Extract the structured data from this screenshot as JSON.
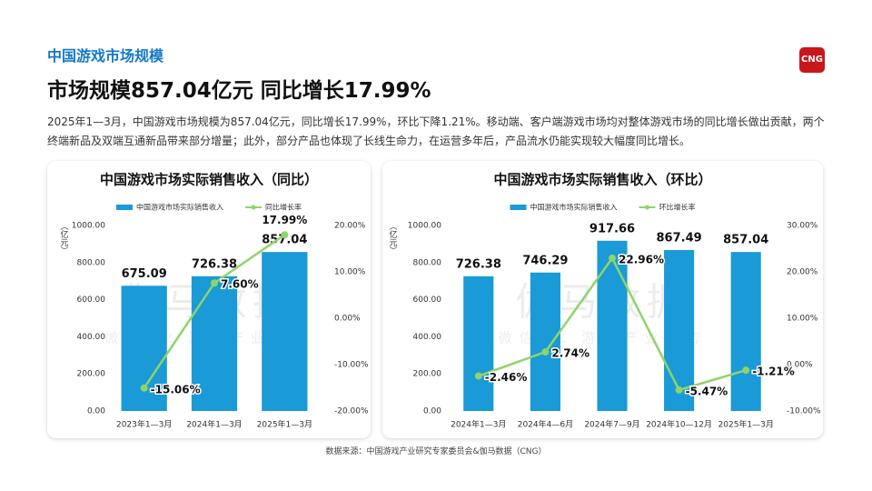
{
  "section": "中国游戏市场规模",
  "title": "市场规模857.04亿元 同比增长17.99%",
  "paragraph": "2025年1—3月，中国游戏市场规模为857.04亿元，同比增长17.99%，环比下降1.21%。移动端、客户端游戏市场均对整体游戏市场的同比增长做出贡献，两个终端新品及双端互通新品带来部分增量；此外，部分产品也体现了长线生命力，在运营多年后，产品流水仍能实现较大幅度同比增长。",
  "logo": "CNG",
  "watermark": [
    "伽马数据",
    "微信号：游戏产业报告"
  ],
  "source": "数据来源：中国游戏产业研究专家委员会&伽马数据（CNG）",
  "chart_data": [
    {
      "type": "bar_line",
      "title": "中国游戏市场实际销售收入（同比）",
      "y_label": "（亿元）",
      "categories": [
        "2023年1—3月",
        "2024年1—3月",
        "2025年1—3月"
      ],
      "series": [
        {
          "name": "中国游戏市场实际销售收入",
          "color": "#1a9ad6",
          "values": [
            675.09,
            726.38,
            857.04
          ]
        },
        {
          "name": "同比增长率",
          "color": "#8fd46a",
          "axis": "y2",
          "values": [
            -15.06,
            7.6,
            17.99
          ],
          "value_labels": [
            "-15.06%",
            "7.60%",
            "17.99%"
          ]
        }
      ],
      "ylim": [
        0,
        1000
      ],
      "yticks": [
        {
          "value": 0,
          "label": "0.00"
        },
        {
          "value": 200,
          "label": "200.00"
        },
        {
          "value": 400,
          "label": "400.00"
        },
        {
          "value": 600,
          "label": "600.00"
        },
        {
          "value": 800,
          "label": "800.00"
        },
        {
          "value": 1000,
          "label": "1000.00"
        }
      ],
      "y2lim": [
        -20,
        20
      ],
      "y2ticks": [
        {
          "value": -20,
          "label": "-20.00%"
        },
        {
          "value": -10,
          "label": "-10.00%"
        },
        {
          "value": 0,
          "label": "0.00%"
        },
        {
          "value": 10,
          "label": "10.00%"
        },
        {
          "value": 20,
          "label": "20.00%"
        }
      ],
      "legend": "top"
    },
    {
      "type": "bar_line",
      "title": "中国游戏市场实际销售收入（环比）",
      "y_label": "（亿元）",
      "categories": [
        "2024年1—3月",
        "2024年4—6月",
        "2024年7—9月",
        "2024年10—12月",
        "2025年1—3月"
      ],
      "series": [
        {
          "name": "中国游戏市场实际销售收入",
          "color": "#1a9ad6",
          "values": [
            726.38,
            746.29,
            917.66,
            867.49,
            857.04
          ]
        },
        {
          "name": "环比增长率",
          "color": "#8fd46a",
          "axis": "y2",
          "values": [
            -2.46,
            2.74,
            22.96,
            -5.47,
            -1.21
          ],
          "value_labels": [
            "-2.46%",
            "2.74%",
            "22.96%",
            "-5.47%",
            "-1.21%"
          ]
        }
      ],
      "ylim": [
        0,
        1000
      ],
      "yticks": [
        {
          "value": 0,
          "label": "0.00"
        },
        {
          "value": 200,
          "label": "200.00"
        },
        {
          "value": 400,
          "label": "400.00"
        },
        {
          "value": 600,
          "label": "600.00"
        },
        {
          "value": 800,
          "label": "800.00"
        },
        {
          "value": 1000,
          "label": "1000.00"
        }
      ],
      "y2lim": [
        -10,
        30
      ],
      "y2ticks": [
        {
          "value": -10,
          "label": "-10.00%"
        },
        {
          "value": 0,
          "label": "0.00%"
        },
        {
          "value": 10,
          "label": "10.00%"
        },
        {
          "value": 20,
          "label": "20.00%"
        },
        {
          "value": 30,
          "label": "30.00%"
        }
      ],
      "legend": "top"
    }
  ]
}
